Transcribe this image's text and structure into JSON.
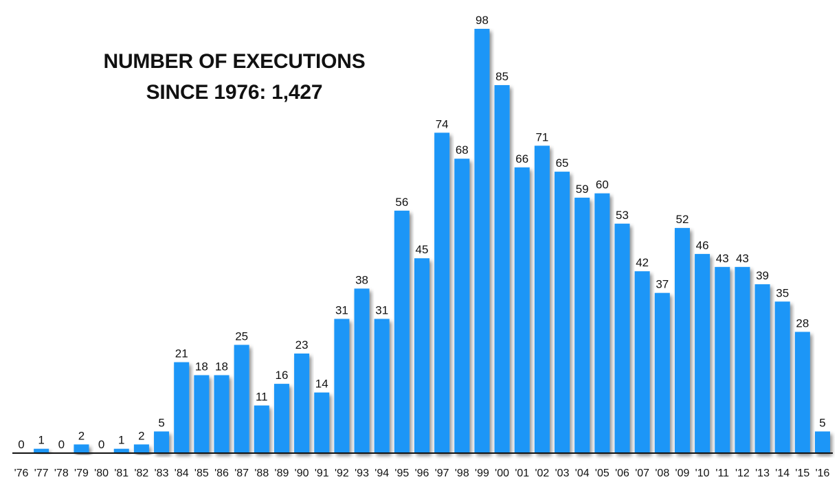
{
  "chart_data": {
    "type": "bar",
    "title_lines": [
      "NUMBER OF EXECUTIONS",
      "SINCE 1976: 1,427"
    ],
    "categories": [
      "'76",
      "'77",
      "'78",
      "'79",
      "'80",
      "'81",
      "'82",
      "'83",
      "'84",
      "'85",
      "'86",
      "'87",
      "'88",
      "'89",
      "'90",
      "'91",
      "'92",
      "'93",
      "'94",
      "'95",
      "'96",
      "'97",
      "'98",
      "'99",
      "'00",
      "'01",
      "'02",
      "'03",
      "'04",
      "'05",
      "'06",
      "'07",
      "'08",
      "'09",
      "'10",
      "'11",
      "'12",
      "'13",
      "'14",
      "'15",
      "'16"
    ],
    "values": [
      0,
      1,
      0,
      2,
      0,
      1,
      2,
      5,
      21,
      18,
      18,
      25,
      11,
      16,
      23,
      14,
      31,
      38,
      31,
      56,
      45,
      74,
      68,
      98,
      85,
      66,
      71,
      65,
      59,
      60,
      53,
      42,
      37,
      52,
      46,
      43,
      43,
      39,
      35,
      28,
      5
    ],
    "ylim": [
      0,
      98
    ],
    "grid": false,
    "legend": "none",
    "bar_color": "#1a96f7",
    "axis_color": "#111111"
  }
}
